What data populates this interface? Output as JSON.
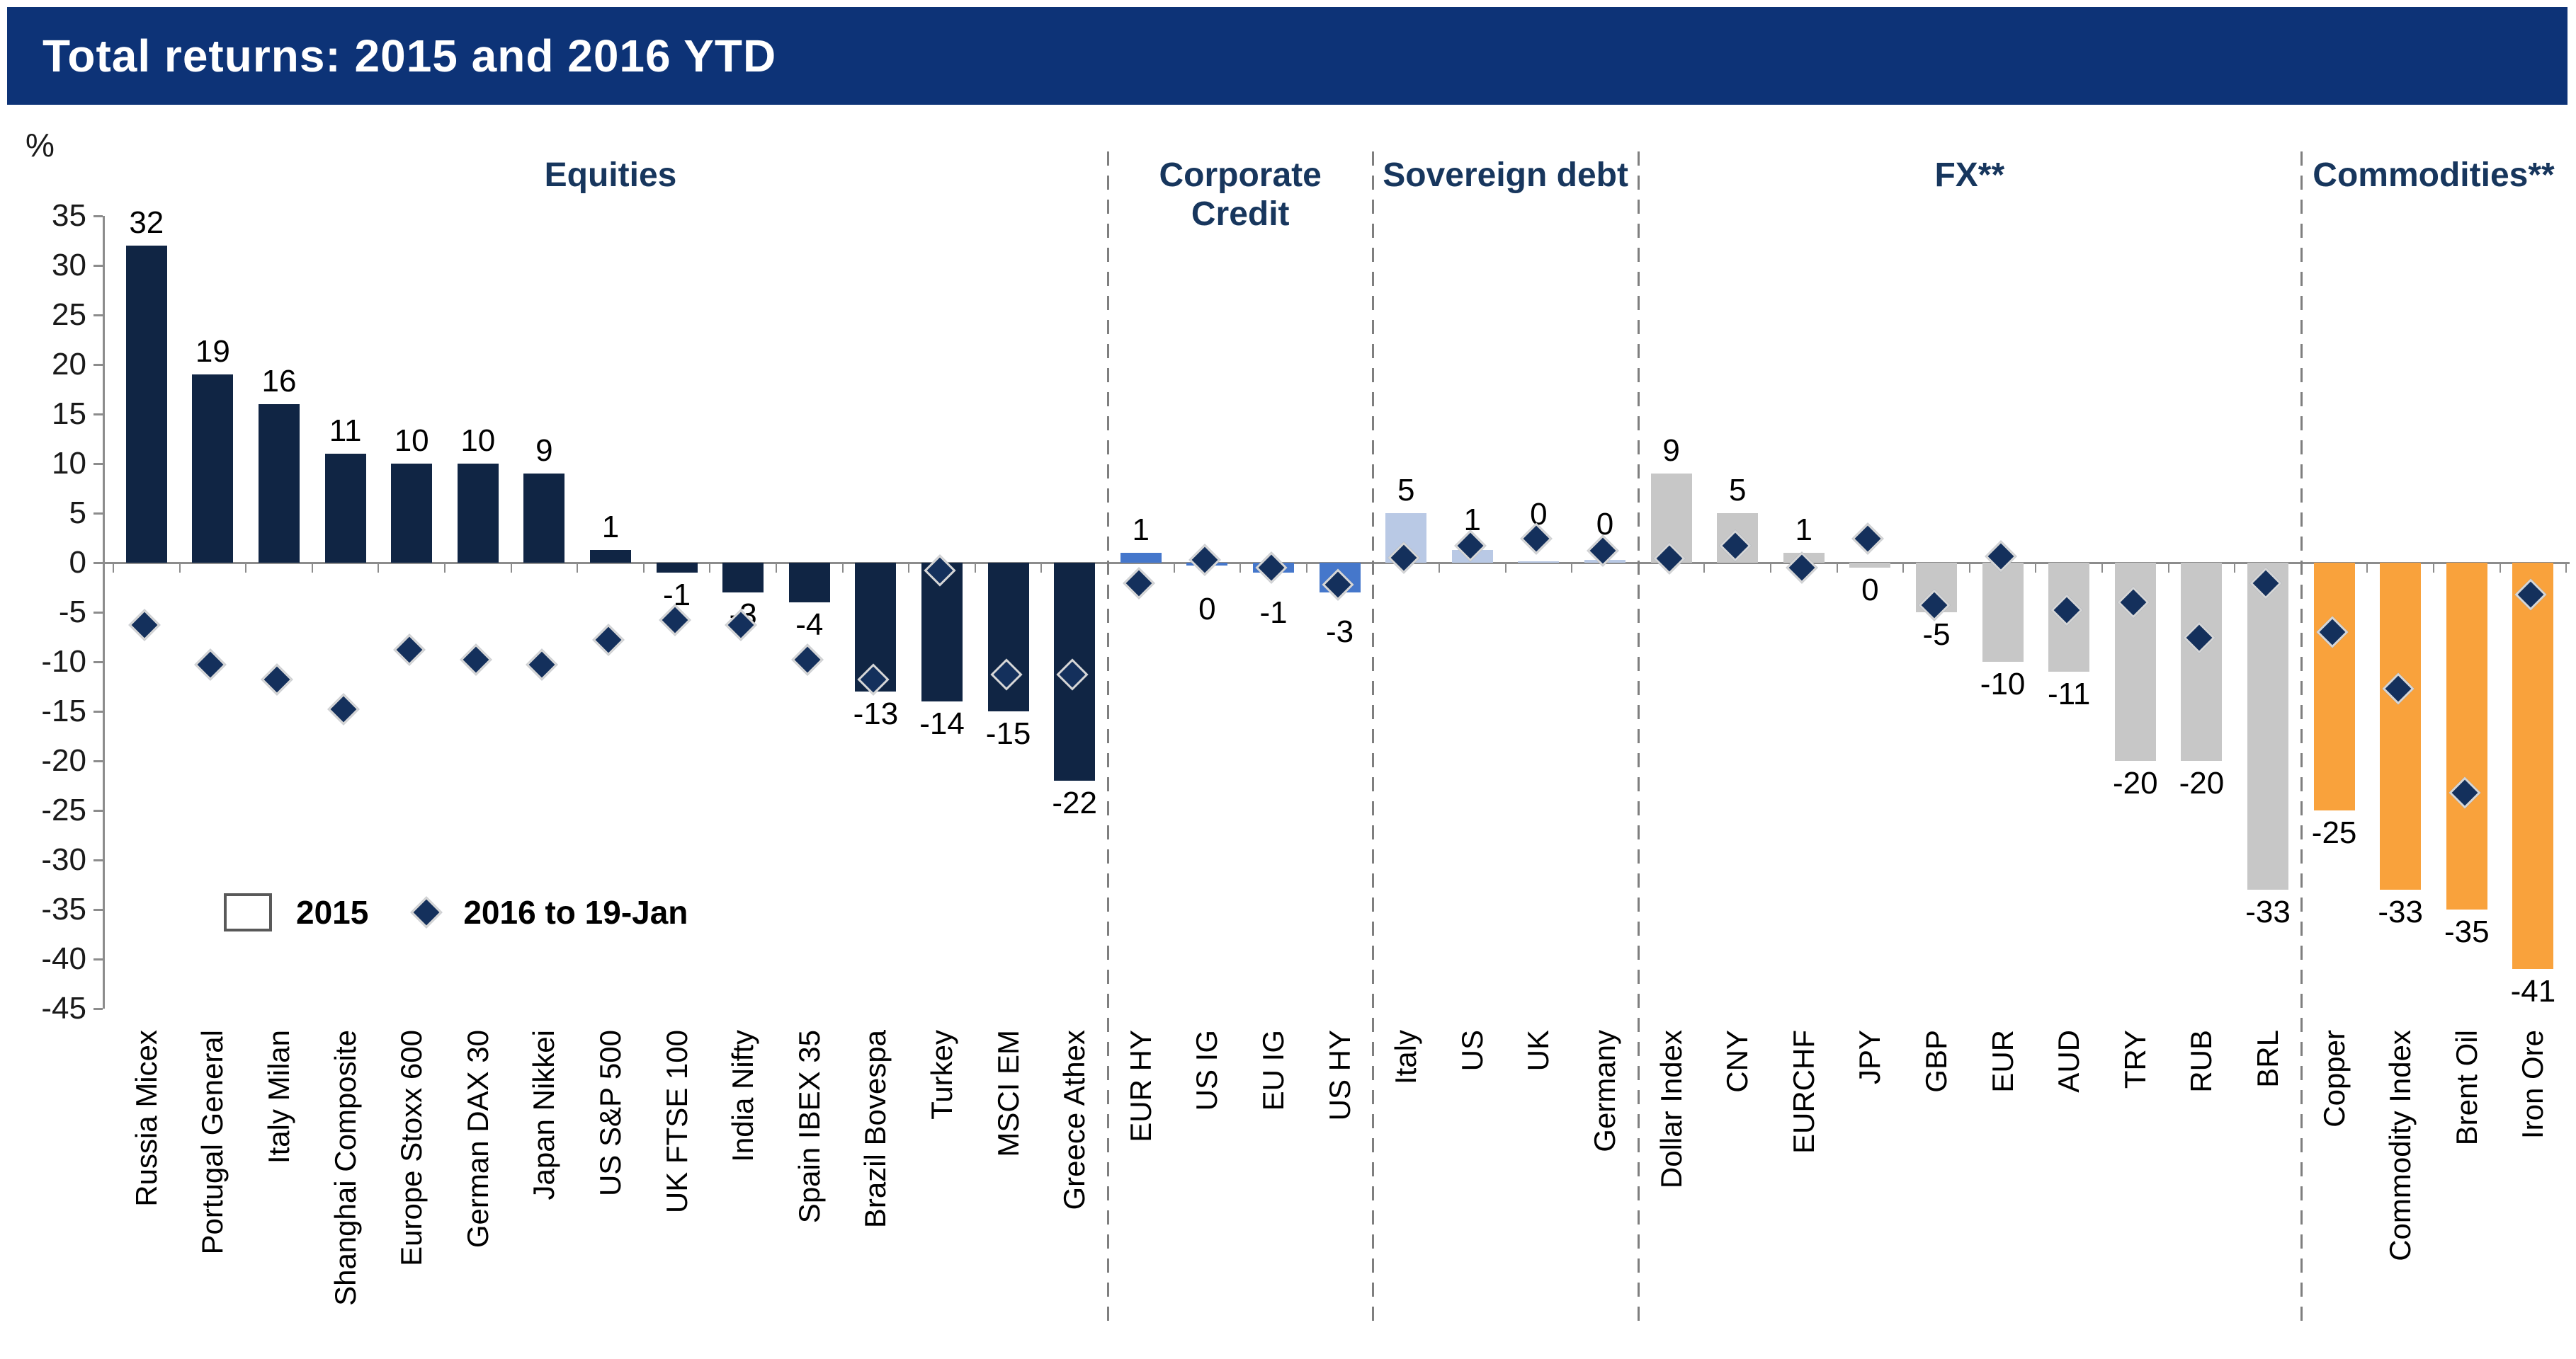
{
  "banner": {
    "title": "Total returns: 2015 and 2016 YTD"
  },
  "y_axis": {
    "unit": "%",
    "min": -45,
    "max": 35,
    "step": 5
  },
  "legend": {
    "bar": "2015",
    "diamond": "2016 to 19-Jan"
  },
  "colors": {
    "banner": "#0D3377",
    "header": "#17365D",
    "axis": "#8C8C8C",
    "diamond": "#14305C",
    "diamond_border": "#D6D6D6",
    "equities_bar": "#102544",
    "credit_bar": "#4577CB",
    "sovereign_bar": "#B9C9E5",
    "fx_bar": "#C7C7C7",
    "commodities_bar": "#F9A23C"
  },
  "chart_data": {
    "type": "bar",
    "title": "Total returns: 2015 and 2016 YTD",
    "ylabel": "%",
    "ylim": [
      -45,
      35
    ],
    "ytick_step": 5,
    "grid": false,
    "legend_position": "inside-left",
    "series": [
      {
        "name": "2015",
        "marker": "bar"
      },
      {
        "name": "2016 to 19-Jan",
        "marker": "diamond"
      }
    ],
    "groups": [
      {
        "name": "Equities",
        "color_key": "equities_bar",
        "two_line": false,
        "items": [
          {
            "label": "Russia Micex",
            "bar": 32,
            "bar_label": "32",
            "diamond": -6.5,
            "side": "above",
            "anchor": 32
          },
          {
            "label": "Portugal General",
            "bar": 19,
            "bar_label": "19",
            "diamond": -10.5,
            "side": "above",
            "anchor": 19
          },
          {
            "label": "Italy Milan",
            "bar": 16,
            "bar_label": "16",
            "diamond": -12,
            "side": "above",
            "anchor": 16
          },
          {
            "label": "Shanghai Composite",
            "bar": 11,
            "bar_label": "11",
            "diamond": -15,
            "side": "above",
            "anchor": 11
          },
          {
            "label": "Europe Stoxx 600",
            "bar": 10,
            "bar_label": "10",
            "diamond": -9,
            "side": "above",
            "anchor": 10
          },
          {
            "label": "German DAX 30",
            "bar": 10,
            "bar_label": "10",
            "diamond": -10,
            "side": "above",
            "anchor": 10
          },
          {
            "label": "Japan Nikkei",
            "bar": 9,
            "bar_label": "9",
            "diamond": -10.5,
            "side": "above",
            "anchor": 9
          },
          {
            "label": "US S&P 500",
            "bar": 1.3,
            "bar_label": "1",
            "diamond": -8,
            "side": "above",
            "anchor": 1.3
          },
          {
            "label": "UK FTSE 100",
            "bar": -1,
            "bar_label": "-1",
            "diamond": -6,
            "side": "below",
            "anchor": -1
          },
          {
            "label": "India Nifty",
            "bar": -3,
            "bar_label": "-3",
            "diamond": -6.5,
            "side": "below",
            "anchor": -3
          },
          {
            "label": "Spain IBEX 35",
            "bar": -4,
            "bar_label": "-4",
            "diamond": -10,
            "side": "below",
            "anchor": -4
          },
          {
            "label": "Brazil Bovespa",
            "bar": -13,
            "bar_label": "-13",
            "diamond": -12,
            "side": "below",
            "anchor": -13
          },
          {
            "label": "Turkey",
            "bar": -14,
            "bar_label": "-14",
            "diamond": -1,
            "side": "below",
            "anchor": -14
          },
          {
            "label": "MSCI EM",
            "bar": -15,
            "bar_label": "-15",
            "diamond": -11.5,
            "side": "below",
            "anchor": -15
          },
          {
            "label": "Greece Athex",
            "bar": -22,
            "bar_label": "-22",
            "diamond": -11.5,
            "side": "below",
            "anchor": -22
          }
        ]
      },
      {
        "name": "Corporate Credit",
        "color_key": "credit_bar",
        "two_line": true,
        "items": [
          {
            "label": "EUR HY",
            "bar": 1,
            "bar_label": "1",
            "diamond": -2.3,
            "side": "above",
            "anchor": 1
          },
          {
            "label": "US IG",
            "bar": -0.3,
            "bar_label": "0",
            "diamond": 0.1,
            "side": "below",
            "anchor": -2.4
          },
          {
            "label": "EU IG",
            "bar": -1,
            "bar_label": "-1",
            "diamond": -0.7,
            "side": "below",
            "anchor": -2.8
          },
          {
            "label": "US HY",
            "bar": -3,
            "bar_label": "-3",
            "diamond": -2.4,
            "side": "below",
            "anchor": -4.7
          }
        ]
      },
      {
        "name": "Sovereign debt",
        "color_key": "sovereign_bar",
        "two_line": false,
        "items": [
          {
            "label": "Italy",
            "bar": 5,
            "bar_label": "5",
            "diamond": 0.3,
            "side": "above",
            "anchor": 5
          },
          {
            "label": "US",
            "bar": 1.3,
            "bar_label": "1",
            "diamond": 1.5,
            "side": "above",
            "anchor": 2.0
          },
          {
            "label": "UK",
            "bar": 0.15,
            "bar_label": "0",
            "diamond": 2.2,
            "side": "above",
            "anchor": 2.6
          },
          {
            "label": "Germany",
            "bar": 0.3,
            "bar_label": "0",
            "diamond": 1.0,
            "side": "above",
            "anchor": 1.6
          }
        ]
      },
      {
        "name": "FX**",
        "color_key": "fx_bar",
        "two_line": false,
        "items": [
          {
            "label": "Dollar Index",
            "bar": 9,
            "bar_label": "9",
            "diamond": 0.2,
            "side": "above",
            "anchor": 9
          },
          {
            "label": "CNY",
            "bar": 5,
            "bar_label": "5",
            "diamond": 1.5,
            "side": "above",
            "anchor": 5
          },
          {
            "label": "EURCHF",
            "bar": 1,
            "bar_label": "1",
            "diamond": -0.7,
            "side": "above",
            "anchor": 1
          },
          {
            "label": "JPY",
            "bar": -0.5,
            "bar_label": "0",
            "diamond": 2.2,
            "side": "below",
            "anchor": -0.5
          },
          {
            "label": "GBP",
            "bar": -5,
            "bar_label": "-5",
            "diamond": -4.5,
            "side": "below",
            "anchor": -5
          },
          {
            "label": "EUR",
            "bar": -10,
            "bar_label": "-10",
            "diamond": 0.4,
            "side": "below",
            "anchor": -10
          },
          {
            "label": "AUD",
            "bar": -11,
            "bar_label": "-11",
            "diamond": -5,
            "side": "below",
            "anchor": -11
          },
          {
            "label": "TRY",
            "bar": -20,
            "bar_label": "-20",
            "diamond": -4.2,
            "side": "below",
            "anchor": -20
          },
          {
            "label": "RUB",
            "bar": -20,
            "bar_label": "-20",
            "diamond": -7.8,
            "side": "below",
            "anchor": -20
          },
          {
            "label": "BRL",
            "bar": -33,
            "bar_label": "-33",
            "diamond": -2.3,
            "side": "below",
            "anchor": -33
          }
        ]
      },
      {
        "name": "Commodities**",
        "color_key": "commodities_bar",
        "two_line": false,
        "items": [
          {
            "label": "Copper",
            "bar": -25,
            "bar_label": "-25",
            "diamond": -7.2,
            "side": "below",
            "anchor": -25
          },
          {
            "label": "Commodity Index",
            "bar": -33,
            "bar_label": "-33",
            "diamond": -12.9,
            "side": "below",
            "anchor": -33
          },
          {
            "label": "Brent Oil",
            "bar": -35,
            "bar_label": "-35",
            "diamond": -23.4,
            "side": "below",
            "anchor": -35
          },
          {
            "label": "Iron Ore",
            "bar": -41,
            "bar_label": "-41",
            "diamond": -3.4,
            "side": "below",
            "anchor": -41
          }
        ]
      }
    ]
  }
}
